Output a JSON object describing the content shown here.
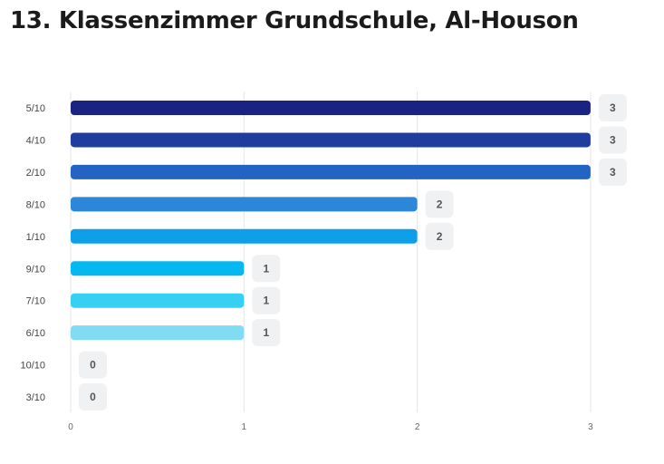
{
  "title": "13. Klassenzimmer Grundschule, Al-Houson",
  "chart_data": {
    "type": "bar",
    "orientation": "horizontal",
    "title": "13. Klassenzimmer Grundschule, Al-Houson",
    "xlabel": "",
    "ylabel": "",
    "categories": [
      "5/10",
      "4/10",
      "2/10",
      "8/10",
      "1/10",
      "9/10",
      "7/10",
      "6/10",
      "10/10",
      "3/10"
    ],
    "values": [
      3,
      3,
      3,
      2,
      2,
      1,
      1,
      1,
      0,
      0
    ],
    "xlim": [
      0,
      3
    ],
    "xticks": [
      0,
      1,
      2,
      3
    ],
    "grid": true,
    "legend": "none",
    "data_labels": true,
    "colors": [
      "#1a2382",
      "#1e3d9e",
      "#2263c4",
      "#2d87d9",
      "#0da0e8",
      "#06b8f0",
      "#35d0f2",
      "#7fdcf2",
      "#8fe0f3",
      "#a0e6f5"
    ],
    "label_box_color": "#f0f1f2"
  }
}
